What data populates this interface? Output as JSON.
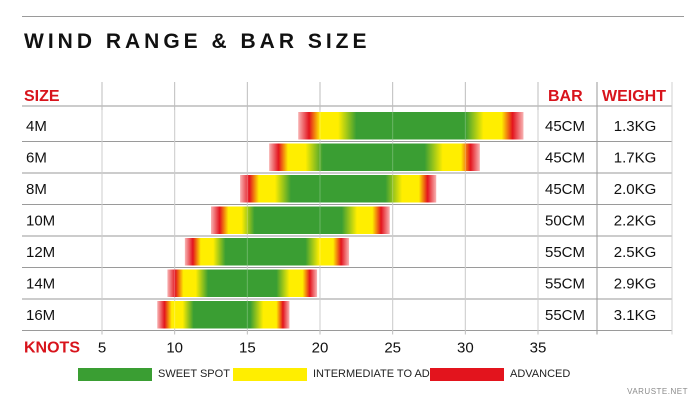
{
  "title": "WIND RANGE & BAR SIZE",
  "watermark": "VARUSTE.NET",
  "colors": {
    "sweet": "#3a9e33",
    "intermediate": "#ffee00",
    "advanced": "#e3141d",
    "header_red": "#d8141c"
  },
  "chart_data": {
    "type": "bar",
    "title": "WIND RANGE & BAR SIZE",
    "xlabel": "KNOTS",
    "x_ticks": [
      5,
      10,
      15,
      20,
      25,
      30,
      35
    ],
    "xlim": [
      5,
      35
    ],
    "columns": {
      "size": "SIZE",
      "bar": "BAR",
      "weight": "WEIGHT"
    },
    "rows": [
      {
        "size": "4M",
        "bar": "45CM",
        "weight": "1.3KG",
        "advanced_min": 18.5,
        "intermediate_min": 20.0,
        "sweet_min": 22.5,
        "sweet_max": 30.0,
        "intermediate_max": 32.5,
        "advanced_max": 34.0
      },
      {
        "size": "6M",
        "bar": "45CM",
        "weight": "1.7KG",
        "advanced_min": 16.5,
        "intermediate_min": 17.8,
        "sweet_min": 20.2,
        "sweet_max": 27.2,
        "intermediate_max": 29.7,
        "advanced_max": 31.0
      },
      {
        "size": "8M",
        "bar": "45CM",
        "weight": "2.0KG",
        "advanced_min": 14.5,
        "intermediate_min": 15.8,
        "sweet_min": 18.0,
        "sweet_max": 24.5,
        "intermediate_max": 26.8,
        "advanced_max": 28.0
      },
      {
        "size": "10M",
        "bar": "50CM",
        "weight": "2.2KG",
        "advanced_min": 12.5,
        "intermediate_min": 13.7,
        "sweet_min": 15.5,
        "sweet_max": 21.5,
        "intermediate_max": 23.6,
        "advanced_max": 24.8
      },
      {
        "size": "12M",
        "bar": "55CM",
        "weight": "2.5KG",
        "advanced_min": 10.7,
        "intermediate_min": 11.8,
        "sweet_min": 13.5,
        "sweet_max": 19.0,
        "intermediate_max": 20.9,
        "advanced_max": 22.0
      },
      {
        "size": "14M",
        "bar": "55CM",
        "weight": "2.9KG",
        "advanced_min": 9.5,
        "intermediate_min": 10.6,
        "sweet_min": 12.3,
        "sweet_max": 17.0,
        "intermediate_max": 18.8,
        "advanced_max": 19.8
      },
      {
        "size": "16M",
        "bar": "55CM",
        "weight": "3.1KG",
        "advanced_min": 8.8,
        "intermediate_min": 9.8,
        "sweet_min": 11.3,
        "sweet_max": 15.2,
        "intermediate_max": 17.0,
        "advanced_max": 17.9
      }
    ],
    "legend": [
      {
        "key": "sweet",
        "label": "SWEET SPOT"
      },
      {
        "key": "intermediate",
        "label": "INTERMEDIATE TO ADVANCED"
      },
      {
        "key": "advanced",
        "label": "ADVANCED"
      }
    ],
    "grid": true,
    "legend_position": "bottom"
  }
}
